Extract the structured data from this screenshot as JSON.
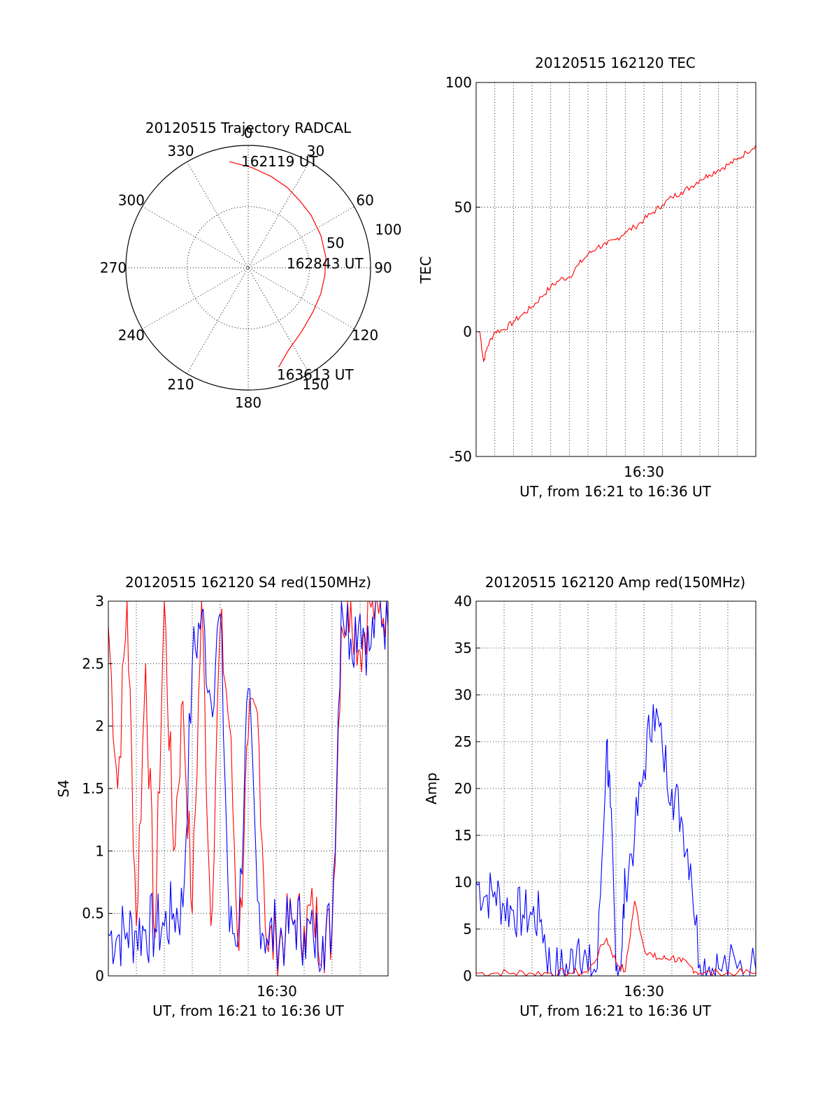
{
  "chart_data": [
    {
      "type": "polar",
      "title": "20120515 Trajectory RADCAL",
      "angle_labels": [
        "0",
        "30",
        "60",
        "90",
        "120",
        "150",
        "180",
        "210",
        "240",
        "270",
        "300",
        "330"
      ],
      "radial_tick_labels": [
        "50",
        "100"
      ],
      "rmax": 100,
      "start_label": "162119 UT",
      "mid_label": "162843 UT",
      "end_label": "163613 UT",
      "colors": {
        "trajectory": "#ff0000"
      },
      "trajectory": {
        "azimuth_deg": [
          350,
          2,
          14,
          26,
          38,
          50,
          66,
          82,
          96,
          110,
          124,
          140,
          154,
          163
        ],
        "radius": [
          88,
          82,
          77,
          73,
          69,
          67,
          65,
          64,
          63,
          63,
          64,
          68,
          75,
          85
        ]
      }
    },
    {
      "type": "line",
      "title": "20120515 162120 TEC",
      "ylabel": "TEC",
      "xlabel": "UT, from 16:21 to 16:36 UT",
      "ylim": [
        -50,
        100
      ],
      "yticks": [
        "100",
        "50",
        "0",
        "-50"
      ],
      "xtick_label": "16:30",
      "colors": {
        "line": "#ff0000"
      },
      "x": [
        0.2,
        0.4,
        0.6,
        1.0,
        1.5,
        2.0,
        2.5,
        3.0,
        3.5,
        4.0,
        4.5,
        5.0,
        5.5,
        6.0,
        6.5,
        7.0,
        7.5,
        8.0,
        8.5,
        9.0,
        9.5,
        10.0,
        10.5,
        11.0,
        11.5,
        12.0,
        12.5,
        13.0,
        13.5,
        14.0,
        14.5,
        15.0
      ],
      "y": [
        0,
        -12,
        -6,
        0,
        1,
        4,
        7,
        10,
        14,
        18,
        21,
        22,
        27,
        31,
        34,
        35,
        37,
        40,
        42,
        45,
        48,
        51,
        54,
        56,
        58,
        61,
        63,
        65,
        67,
        69,
        72,
        75
      ]
    },
    {
      "type": "line",
      "title": "20120515 162120 S4 red(150MHz)",
      "ylabel": "S4",
      "xlabel": "UT, from 16:21 to 16:36 UT",
      "ylim": [
        0,
        3
      ],
      "yticks": [
        "3",
        "2.5",
        "2",
        "1.5",
        "1",
        "0.5",
        "0"
      ],
      "xtick_label": "16:30",
      "colors": {
        "red_series": "#ff0000",
        "blue_series": "#0000ff"
      },
      "series": [
        {
          "x": [
            0.0,
            0.5,
            1.0,
            1.5,
            2.0,
            2.5,
            3.0,
            3.5,
            4.0,
            4.5,
            5.0,
            5.5,
            6.0,
            6.5,
            7.0,
            7.5,
            8.0,
            8.5,
            9.0,
            9.5,
            10.0,
            10.5,
            11.0,
            11.5,
            12.0,
            12.5,
            13.0,
            13.5,
            14.0,
            14.5,
            15.0
          ],
          "y": [
            2.8,
            1.5,
            3.0,
            0.4,
            2.5,
            0.3,
            3.0,
            1.0,
            2.2,
            0.5,
            3.0,
            0.4,
            2.8,
            2.0,
            0.2,
            1.9,
            2.1,
            0.25,
            0.28,
            0.35,
            0.45,
            0.4,
            0.5,
            0.3,
            0.35,
            2.8,
            3.0,
            2.6,
            3.0,
            2.9,
            3.0
          ]
        },
        {
          "x": [
            0.0,
            0.5,
            1.0,
            1.5,
            2.0,
            2.5,
            3.0,
            3.5,
            4.0,
            4.5,
            5.0,
            5.5,
            6.0,
            6.5,
            7.0,
            7.5,
            8.0,
            8.5,
            9.0,
            9.5,
            10.0,
            10.5,
            11.0,
            11.5,
            12.0,
            12.5,
            13.0,
            13.5,
            14.0,
            14.5,
            15.0
          ],
          "y": [
            0.33,
            0.32,
            0.35,
            0.36,
            0.37,
            0.38,
            0.4,
            0.5,
            0.55,
            2.5,
            2.9,
            2.2,
            2.9,
            0.35,
            0.4,
            2.3,
            0.6,
            0.3,
            0.35,
            0.32,
            0.45,
            0.35,
            0.3,
            0.32,
            0.4,
            3.0,
            2.7,
            2.9,
            2.6,
            3.0,
            2.8
          ]
        }
      ]
    },
    {
      "type": "line",
      "title": "20120515 162120 Amp red(150MHz)",
      "ylabel": "Amp",
      "xlabel": "UT, from 16:21 to 16:36 UT",
      "ylim": [
        0,
        40
      ],
      "yticks": [
        "40",
        "35",
        "30",
        "25",
        "20",
        "15",
        "10",
        "5",
        "0"
      ],
      "xtick_label": "16:30",
      "colors": {
        "red_series": "#ff0000",
        "blue_series": "#0000ff"
      },
      "series": [
        {
          "x": [
            0.0,
            1.0,
            2.0,
            3.0,
            4.0,
            5.0,
            6.0,
            7.0,
            7.5,
            8.0,
            8.5,
            9.0,
            9.5,
            10.0,
            10.5,
            11.0,
            11.5,
            12.0,
            13.0,
            14.0,
            15.0
          ],
          "y": [
            0.3,
            0.3,
            0.3,
            0.3,
            0.3,
            0.3,
            0.4,
            4.0,
            1.5,
            0.5,
            8.0,
            3.0,
            2.0,
            1.8,
            2.0,
            1.5,
            1.0,
            0.3,
            0.3,
            0.3,
            0.3
          ]
        },
        {
          "x": [
            0.0,
            0.5,
            1.0,
            1.5,
            2.0,
            2.5,
            3.0,
            3.5,
            4.0,
            4.5,
            5.0,
            5.5,
            6.0,
            6.5,
            7.0,
            7.2,
            7.5,
            7.8,
            8.0,
            8.5,
            9.0,
            9.5,
            10.0,
            10.5,
            11.0,
            11.5,
            12.0,
            12.5,
            13.0,
            14.0,
            15.0
          ],
          "y": [
            10.0,
            8.5,
            9.0,
            7.5,
            7.0,
            6.5,
            6.5,
            6.0,
            0.5,
            0.5,
            0.8,
            4.0,
            0.6,
            0.8,
            25.0,
            18.0,
            0.5,
            2.5,
            10.0,
            15.0,
            22.0,
            29.0,
            24.0,
            20.0,
            17.0,
            12.0,
            1.2,
            1.0,
            0.8,
            0.8,
            0.7
          ]
        }
      ]
    }
  ]
}
